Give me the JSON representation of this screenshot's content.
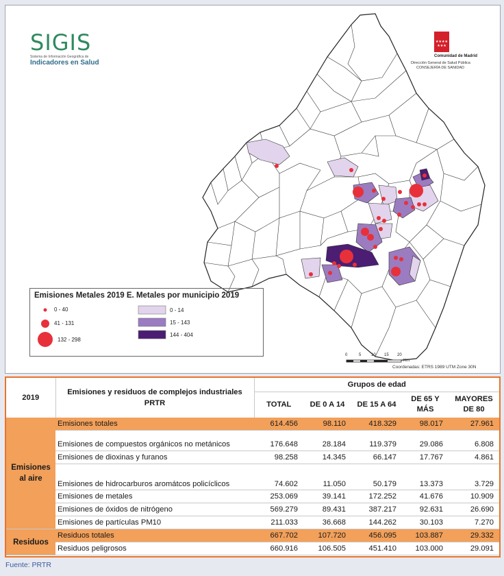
{
  "header": {
    "sigis_title": "SIGIS",
    "sigis_subtitle_small": "Sistema de Información Geográfica de",
    "sigis_subtitle": "Indicadores en Salud",
    "cam_name": "Comunidad de Madrid",
    "cam_dept1": "Dirección General de Salud Pública",
    "cam_dept2": "CONSEJERÍA DE SANIDAD",
    "cam_stars": "★★★★ ★★★"
  },
  "legend": {
    "title": "Emisiones Metales 2019  E. Metales por municipio 2019",
    "circle_labels": [
      "0 - 40",
      "41 - 131",
      "132 - 298"
    ],
    "fill_labels": [
      "0 - 14",
      "15 - 143",
      "144 - 404"
    ],
    "fill_colors": [
      "#e2d4ec",
      "#9b7cc0",
      "#4b1d73"
    ],
    "point_color": "#e8303a"
  },
  "map": {
    "coords": "Coordenadas: ETRS 1989 UTM Zone 30N",
    "scale_labels": [
      "0",
      "5",
      "10",
      "15",
      "20"
    ],
    "scale_unit": "Km"
  },
  "table": {
    "corner": "2019",
    "title": "Emisiones y residuos de complejos industriales PRTR",
    "group_header": "Grupos de edad",
    "columns": [
      "TOTAL",
      "DE 0 A 14",
      "DE 15 A 64",
      "DE 65 Y MÁS",
      "MAYORES DE 80"
    ],
    "group_aire": "Emisiones al aire",
    "group_residuos": "Residuos",
    "rows": [
      {
        "label": "Emisiones totales",
        "values": [
          "614.456",
          "98.110",
          "418.329",
          "98.017",
          "27.961"
        ],
        "highlight": true
      },
      {
        "label": "Emisiones de compuestos orgánicos no metánicos",
        "values": [
          "176.648",
          "28.184",
          "119.379",
          "29.086",
          "6.808"
        ]
      },
      {
        "label": "Emisiones de dioxinas y furanos",
        "values": [
          "98.258",
          "14.345",
          "66.147",
          "17.767",
          "4.861"
        ]
      },
      {
        "label": "Emisiones de hidrocarburos aromátcos policíclicos",
        "values": [
          "74.602",
          "11.050",
          "50.179",
          "13.373",
          "3.729"
        ]
      },
      {
        "label": "Emisiones de metales",
        "values": [
          "253.069",
          "39.141",
          "172.252",
          "41.676",
          "10.909"
        ]
      },
      {
        "label": "Emisiones de óxidos de nitrógeno",
        "values": [
          "569.279",
          "89.431",
          "387.217",
          "92.631",
          "26.690"
        ]
      },
      {
        "label": "Emisiones de partículas PM10",
        "values": [
          "211.033",
          "36.668",
          "144.262",
          "30.103",
          "7.270"
        ]
      },
      {
        "label": "Residuos totales",
        "values": [
          "667.702",
          "107.720",
          "456.095",
          "103.887",
          "29.332"
        ],
        "highlight": true
      },
      {
        "label": "Residuos peligrosos",
        "values": [
          "660.916",
          "106.505",
          "451.410",
          "103.000",
          "29.091"
        ]
      }
    ]
  },
  "source": "Fuente: PRTR"
}
